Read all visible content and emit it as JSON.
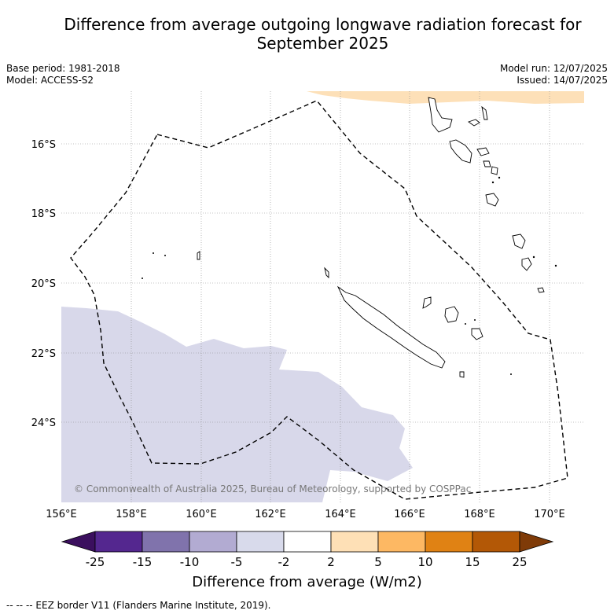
{
  "header": {
    "title_line1": "Difference from average outgoing longwave radiation forecast for",
    "title_line2": "September 2025",
    "base_period": "Base period: 1981-2018",
    "model": "Model: ACCESS-S2",
    "model_run": "Model run: 12/07/2025",
    "issued": "Issued: 14/07/2025"
  },
  "map": {
    "lat_labels": [
      "16°S",
      "18°S",
      "20°S",
      "22°S",
      "24°S"
    ],
    "lon_labels": [
      "156°E",
      "158°E",
      "160°E",
      "162°E",
      "164°E",
      "166°E",
      "168°E",
      "170°E"
    ],
    "copyright": "© Commonwealth of Australia 2025, Bureau of Meteorology, supported by COSPPac",
    "colors": {
      "negative_region": "#d8d8ea",
      "positive_region": "#fde0b8",
      "eez_line": "#000000",
      "grid": "#888888"
    }
  },
  "colorbar": {
    "title": "Difference from average (W/m2)",
    "ticks": [
      "-25",
      "-15",
      "-10",
      "-5",
      "-2",
      "2",
      "5",
      "10",
      "15",
      "25"
    ],
    "colors": [
      "#3b0f5e",
      "#54278f",
      "#8073ac",
      "#b2abd2",
      "#d8daeb",
      "#ffffff",
      "#fee0b6",
      "#fdb863",
      "#e08214",
      "#b35806",
      "#7f3b08"
    ]
  },
  "footnote": "--  --  -- EEZ border V11 (Flanders Marine Institute, 2019)."
}
